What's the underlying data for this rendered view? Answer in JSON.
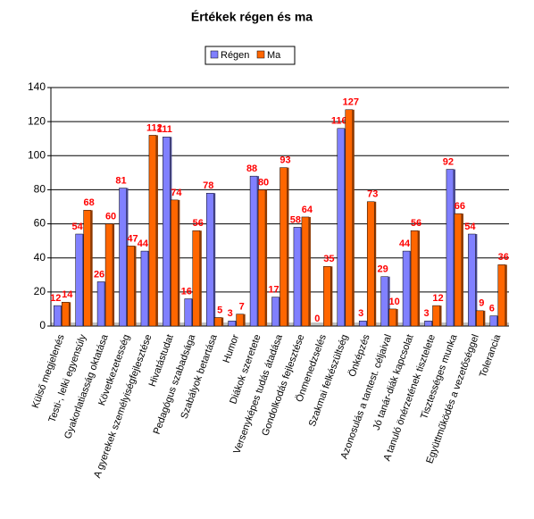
{
  "chart_data": {
    "type": "bar",
    "title": "Értékek régen és ma",
    "categories": [
      "Külső megjelenés",
      "Testi-, lelki egyensúly",
      "Gyakorlatiasság oktatása",
      "Következetesség",
      "A gyerekek személyiségfejlesztése",
      "Hivatástudat",
      "Pedagógus szabadsága",
      "Szabályok betartása",
      "Humor",
      "Diákok szeretete",
      "Versenyképes tudás átadása",
      "Gondolkodás fejlesztése",
      "Önmenedzselés",
      "Szakmai felkészültség",
      "Önképzés",
      "Azonosulás a tantest. céljaival",
      "Jó tanár-diák kapcsolat",
      "A tanuló önérzetének tisztelete",
      "Tisztességes munka",
      "Együttműködés a vezetőséggel",
      "Tolerancia"
    ],
    "series": [
      {
        "name": "Régen",
        "color": "#8080ff",
        "values": [
          12,
          54,
          26,
          81,
          44,
          111,
          16,
          78,
          3,
          88,
          17,
          58,
          0,
          116,
          3,
          29,
          44,
          3,
          92,
          54,
          6
        ]
      },
      {
        "name": "Ma",
        "color": "#ff6600",
        "values": [
          14,
          68,
          60,
          47,
          112,
          74,
          56,
          5,
          7,
          80,
          93,
          64,
          35,
          127,
          73,
          10,
          56,
          12,
          66,
          9,
          36
        ]
      }
    ],
    "ylim": [
      0,
      140
    ],
    "yticks": [
      0,
      20,
      40,
      60,
      80,
      100,
      120,
      140
    ],
    "grid": true,
    "legend": "top"
  }
}
